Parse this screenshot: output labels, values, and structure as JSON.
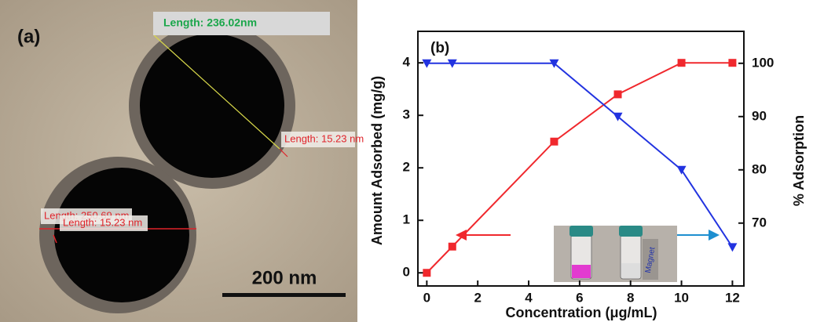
{
  "panel_a": {
    "label": "(a)",
    "measurements": [
      "Length: 236.02nm",
      "Length: 15.23 nm",
      "Length: 250.69 nm",
      "Length: 15.23 nm"
    ],
    "scale_bar": "200 nm"
  },
  "chart_data": {
    "type": "line",
    "panel_label": "(b)",
    "x_label": "Concentration  (μg/mL)",
    "y_label": "Amount Adsorbed (mg/g)",
    "y2_label": "% Adsorption",
    "inset_label": "Magnet",
    "x": [
      0,
      1,
      5,
      7.5,
      10,
      12
    ],
    "series": [
      {
        "color": "#f0282d",
        "marker": "square",
        "values": [
          0,
          0.5,
          2.5,
          3.4,
          4,
          4
        ]
      },
      {
        "color": "#2233e0",
        "marker": "triangle-down",
        "axis": "y2",
        "values": [
          100,
          100,
          100,
          90,
          80,
          65.5
        ]
      }
    ],
    "xlim": [
      -0.35,
      12.45
    ],
    "xticks": [
      0,
      2,
      4,
      6,
      8,
      10,
      12
    ],
    "ylim": [
      -0.25,
      4.6
    ],
    "yticks": [
      0,
      1,
      2,
      3,
      4
    ],
    "y2lim": [
      58.2,
      106
    ],
    "y2ticks": [
      70,
      80,
      90,
      100
    ]
  }
}
